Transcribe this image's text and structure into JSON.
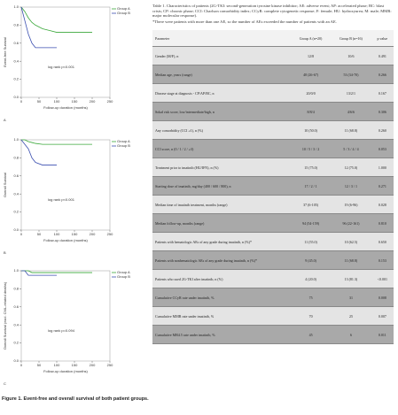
{
  "chart_data": [
    {
      "type": "line",
      "y_label": "Event-free Survival",
      "x_label": "Follow-up duration (months)",
      "annotation": "log rank p<0.001",
      "panel_label": "A",
      "x": [
        0,
        10,
        20,
        30,
        40,
        60,
        80,
        100,
        150,
        200
      ],
      "xlim": [
        0,
        250
      ],
      "xticks": [
        0,
        50,
        100,
        150,
        200,
        250
      ],
      "ylim": [
        0,
        1
      ],
      "yticks": [
        {
          "value": 0,
          "label": "0.0"
        },
        0.2,
        0.4,
        0.6,
        0.8,
        {
          "value": 1,
          "label": "1.0"
        }
      ],
      "legend": "upper right",
      "series": [
        {
          "name": "Group A",
          "color": "#3aa83a",
          "values": [
            1,
            0.95,
            0.88,
            0.83,
            0.8,
            0.76,
            0.74,
            0.72,
            0.72,
            0.72
          ]
        },
        {
          "name": "Group B",
          "color": "#3b4fb0",
          "values": [
            1,
            0.85,
            0.7,
            0.6,
            0.55,
            0.55,
            0.55,
            0.55,
            null,
            null
          ]
        }
      ]
    },
    {
      "type": "line",
      "y_label": "Overall Survival",
      "x_label": "Follow-up duration (months)",
      "annotation": "log rank p<0.001",
      "panel_label": "B",
      "x": [
        0,
        10,
        20,
        30,
        40,
        60,
        80,
        100,
        150,
        200
      ],
      "xlim": [
        0,
        250
      ],
      "xticks": [
        0,
        50,
        100,
        150,
        200,
        250
      ],
      "ylim": [
        0,
        1
      ],
      "yticks": [
        {
          "value": 0,
          "label": "0.0"
        },
        0.2,
        0.4,
        0.6,
        0.8,
        {
          "value": 1,
          "label": "1.0"
        }
      ],
      "legend": "upper right",
      "series": [
        {
          "name": "Group A",
          "color": "#3aa83a",
          "values": [
            1,
            1,
            0.98,
            0.97,
            0.96,
            0.95,
            0.95,
            0.95,
            0.95,
            0.95
          ]
        },
        {
          "name": "Group B",
          "color": "#3b4fb0",
          "values": [
            1,
            0.95,
            0.9,
            0.8,
            0.75,
            0.72,
            0.72,
            0.72,
            null,
            null
          ]
        }
      ]
    },
    {
      "type": "line",
      "y_label": "Overall Survival (excl. CML-related deaths)",
      "x_label": "Follow-up duration (months)",
      "annotation": "log rank p=0.094",
      "panel_label": "C",
      "x": [
        0,
        10,
        20,
        30,
        40,
        60,
        80,
        100,
        150,
        200
      ],
      "xlim": [
        0,
        250
      ],
      "xticks": [
        0,
        50,
        100,
        150,
        200,
        250
      ],
      "ylim": [
        0,
        1
      ],
      "yticks": [
        {
          "value": 0,
          "label": "0.0"
        },
        0.2,
        0.4,
        0.6,
        0.8,
        {
          "value": 1,
          "label": "1.0"
        }
      ],
      "legend": "upper right",
      "series": [
        {
          "name": "Group A",
          "color": "#3aa83a",
          "values": [
            1,
            1,
            1,
            0.98,
            0.98,
            0.98,
            0.98,
            0.98,
            0.98,
            0.98
          ]
        },
        {
          "name": "Group B",
          "color": "#3b4fb0",
          "values": [
            1,
            1,
            0.95,
            0.95,
            0.95,
            0.95,
            0.95,
            0.95,
            null,
            null
          ]
        }
      ]
    }
  ],
  "figure_caption": "Figure 1. Event-free and overall survival of both patient groups.",
  "table": {
    "caption": "Table 1. Characteristics of patients (2G-TKI: second-generation tyrosine kinase inhibitor; AE: adverse event; AP: accelerated phase; BC: blast crisis; CP: chronic phase; CCI: Charlson comorbidity index; CCyR: complete cytogenetic response; F: female; HU: hydroxyurea; M: male; MMR: major molecular response).",
    "note": "*There were patients with more than one AE, so the number of AEs exceeded the number of patients with an AE.",
    "header": [
      "Parameter",
      "Group A (n=20)",
      "Group B (n=16)",
      "p value"
    ],
    "rows": [
      [
        "Gender (M/F), n",
        "12/8",
        "10/6",
        "0.491"
      ],
      [
        "Median age, years (range)",
        "48 (26-67)",
        "53 (34-70)",
        "0.266"
      ],
      [
        "Disease stage at diagnosis - CP/AP/BC, n",
        "20/0/0",
        "13/2/1",
        "0.167"
      ],
      [
        "Sokal risk score, low/intermediate/high, n",
        "8/8/4",
        "4/6/6",
        "0.306"
      ],
      [
        "Any comorbidity (CCI ≥1), n (%)",
        "10 (50.0)",
        "11 (68.8)",
        "0.260"
      ],
      [
        "CCI score, n (0 / 1 / 2 / ≥3)",
        "10 / 5 / 3 / 2",
        "5 / 3 / 4 / 4",
        "0.053"
      ],
      [
        "Treatment prior to imatinib (HU/IFN), n (%)",
        "15 (75.0)",
        "12 (75.0)",
        "1.000"
      ],
      [
        "Starting dose of imatinib, mg/day (400 / 600 / 800), n",
        "17 / 2 / 1",
        "12 / 3 / 1",
        "0.271"
      ],
      [
        "Median time of imatinib treatment, months (range)",
        "37 (6-105)",
        "19 (6-96)",
        "0.028"
      ],
      [
        "Median follow-up, months (range)",
        "94 (54-159)",
        "96 (22-161)",
        "0.810"
      ],
      [
        "Patients with hematologic AEs of any grade during imatinib, n (%)*",
        "11 (55.0)",
        "10 (62.5)",
        "0.650"
      ],
      [
        "Patients with nonhematologic AEs of any grade during imatinib, n (%)*",
        "9 (45.0)",
        "11 (68.8)",
        "0.153"
      ],
      [
        "Patients who used 2G-TKI after imatinib, n (%)",
        "4 (20.0)",
        "13 (81.3)",
        "<0.001"
      ],
      [
        "Cumulative CCyR rate under imatinib, %",
        "75",
        "31",
        "0.008"
      ],
      [
        "Cumulative MMR rate under imatinib, %",
        "70",
        "25",
        "0.007"
      ],
      [
        "Cumulative MR4.5 rate under imatinib, %",
        "45",
        "6",
        "0.011"
      ]
    ]
  }
}
